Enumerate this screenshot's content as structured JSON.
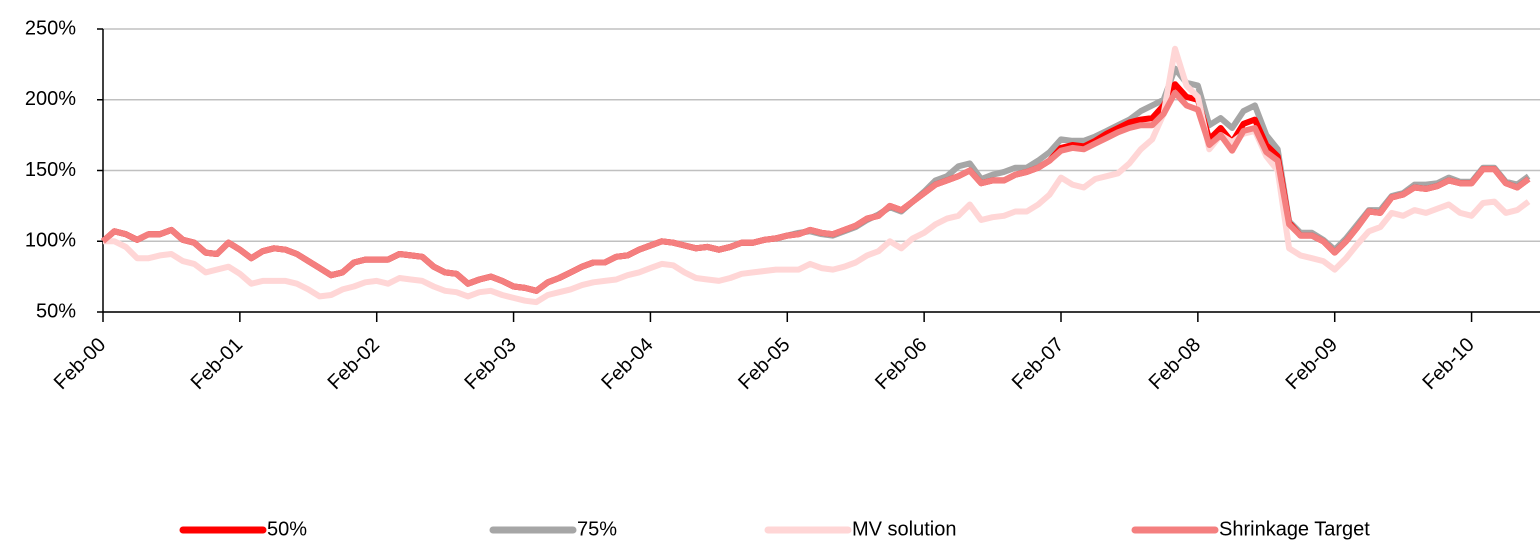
{
  "chart_data": {
    "type": "line",
    "categories": [
      "Feb-00",
      null,
      null,
      null,
      null,
      null,
      null,
      null,
      null,
      null,
      null,
      null,
      "Feb-01",
      null,
      null,
      null,
      null,
      null,
      null,
      null,
      null,
      null,
      null,
      null,
      "Feb-02",
      null,
      null,
      null,
      null,
      null,
      null,
      null,
      null,
      null,
      null,
      null,
      "Feb-03",
      null,
      null,
      null,
      null,
      null,
      null,
      null,
      null,
      null,
      null,
      null,
      "Feb-04",
      null,
      null,
      null,
      null,
      null,
      null,
      null,
      null,
      null,
      null,
      null,
      "Feb-05",
      null,
      null,
      null,
      null,
      null,
      null,
      null,
      null,
      null,
      null,
      null,
      "Feb-06",
      null,
      null,
      null,
      null,
      null,
      null,
      null,
      null,
      null,
      null,
      null,
      "Feb-07",
      null,
      null,
      null,
      null,
      null,
      null,
      null,
      null,
      null,
      null,
      null,
      "Feb-08",
      null,
      null,
      null,
      null,
      null,
      null,
      null,
      null,
      null,
      null,
      null,
      "Feb-09",
      null,
      null,
      null,
      null,
      null,
      null,
      null,
      null,
      null,
      null,
      null,
      "Feb-10",
      null,
      null,
      null,
      null,
      null
    ],
    "series": [
      {
        "name": "50%",
        "color": "#ff0000",
        "values": [
          100,
          107,
          105,
          101,
          105,
          105,
          108,
          101,
          99,
          92,
          91,
          99,
          94,
          88,
          93,
          95,
          94,
          91,
          86,
          81,
          76,
          78,
          85,
          87,
          87,
          87,
          91,
          90,
          89,
          82,
          78,
          77,
          70,
          73,
          75,
          72,
          68,
          67,
          65,
          71,
          74,
          78,
          82,
          85,
          85,
          89,
          90,
          94,
          97,
          100,
          99,
          97,
          95,
          96,
          94,
          96,
          99,
          99,
          101,
          102,
          104,
          105,
          108,
          106,
          105,
          108,
          111,
          116,
          118,
          125,
          122,
          128,
          134,
          140,
          143,
          146,
          150,
          141,
          143,
          143,
          147,
          149,
          152,
          157,
          166,
          168,
          167,
          171,
          176,
          180,
          184,
          186,
          187,
          196,
          211,
          202,
          200,
          172,
          180,
          170,
          183,
          186,
          168,
          160,
          113,
          104,
          104,
          100,
          92,
          100,
          110,
          121,
          120,
          131,
          133,
          138,
          137,
          139,
          143,
          141,
          141,
          151,
          151,
          141,
          138,
          144
        ]
      },
      {
        "name": "75%",
        "color": "#a6a6a6",
        "values": [
          100,
          107,
          105,
          101,
          105,
          105,
          108,
          101,
          99,
          92,
          91,
          99,
          94,
          88,
          93,
          95,
          94,
          91,
          86,
          81,
          76,
          78,
          85,
          87,
          87,
          87,
          91,
          90,
          89,
          82,
          78,
          77,
          70,
          73,
          75,
          72,
          68,
          67,
          65,
          71,
          74,
          78,
          82,
          85,
          85,
          89,
          90,
          94,
          97,
          100,
          99,
          97,
          95,
          96,
          94,
          96,
          99,
          99,
          101,
          102,
          104,
          106,
          107,
          105,
          104,
          107,
          110,
          115,
          119,
          124,
          121,
          128,
          135,
          143,
          146,
          153,
          155,
          144,
          147,
          149,
          152,
          152,
          157,
          163,
          172,
          171,
          171,
          174,
          178,
          182,
          186,
          192,
          196,
          200,
          222,
          212,
          210,
          182,
          187,
          180,
          192,
          196,
          175,
          165,
          114,
          106,
          106,
          101,
          94,
          102,
          112,
          122,
          122,
          132,
          134,
          140,
          140,
          141,
          145,
          142,
          142,
          152,
          152,
          142,
          140,
          146
        ]
      },
      {
        "name": "MV solution",
        "color": "#ffd6d6",
        "values": [
          100,
          100,
          96,
          88,
          88,
          90,
          91,
          86,
          84,
          78,
          80,
          82,
          77,
          70,
          72,
          72,
          72,
          70,
          66,
          61,
          62,
          66,
          68,
          71,
          72,
          70,
          74,
          73,
          72,
          68,
          65,
          64,
          61,
          64,
          65,
          62,
          60,
          58,
          57,
          62,
          64,
          66,
          69,
          71,
          72,
          73,
          76,
          78,
          81,
          84,
          83,
          78,
          74,
          73,
          72,
          74,
          77,
          78,
          79,
          80,
          80,
          80,
          84,
          81,
          80,
          82,
          85,
          90,
          93,
          100,
          95,
          102,
          106,
          112,
          116,
          118,
          126,
          115,
          117,
          118,
          121,
          121,
          126,
          133,
          145,
          140,
          138,
          144,
          146,
          148,
          155,
          165,
          172,
          190,
          236,
          210,
          202,
          165,
          175,
          170,
          176,
          178,
          160,
          150,
          95,
          90,
          88,
          86,
          80,
          88,
          98,
          107,
          110,
          120,
          118,
          122,
          120,
          123,
          126,
          120,
          118,
          127,
          128,
          120,
          122,
          128
        ]
      },
      {
        "name": "Shrinkage Target",
        "color": "#f47f7f",
        "values": [
          100,
          107,
          105,
          101,
          105,
          105,
          108,
          101,
          99,
          92,
          91,
          99,
          94,
          88,
          93,
          95,
          94,
          91,
          86,
          81,
          76,
          78,
          85,
          87,
          87,
          87,
          91,
          90,
          89,
          82,
          78,
          77,
          70,
          73,
          75,
          72,
          68,
          67,
          65,
          71,
          74,
          78,
          82,
          85,
          85,
          89,
          90,
          94,
          97,
          100,
          99,
          97,
          95,
          96,
          94,
          96,
          99,
          99,
          101,
          102,
          104,
          105,
          108,
          106,
          105,
          108,
          111,
          116,
          118,
          125,
          122,
          128,
          134,
          140,
          143,
          146,
          150,
          141,
          143,
          143,
          147,
          149,
          152,
          157,
          164,
          166,
          165,
          169,
          173,
          177,
          180,
          182,
          182,
          190,
          205,
          196,
          193,
          168,
          175,
          164,
          178,
          180,
          163,
          157,
          112,
          104,
          104,
          100,
          92,
          100,
          110,
          121,
          120,
          131,
          133,
          138,
          137,
          139,
          143,
          141,
          141,
          151,
          151,
          141,
          138,
          144
        ]
      }
    ],
    "ylim": [
      50,
      250
    ],
    "yticks": [
      {
        "value": 50,
        "label": "50%"
      },
      {
        "value": 100,
        "label": "100%"
      },
      {
        "value": 150,
        "label": "150%"
      },
      {
        "value": 200,
        "label": "200%"
      },
      {
        "value": 250,
        "label": "250%"
      }
    ],
    "grid": true,
    "legend": "bottom"
  }
}
